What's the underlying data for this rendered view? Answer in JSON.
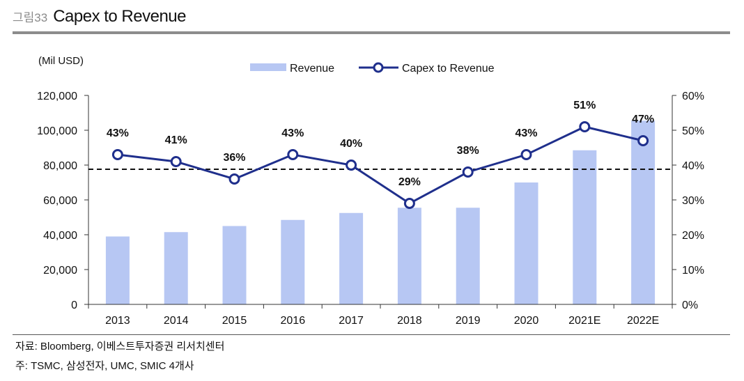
{
  "figure": {
    "number": "그림33",
    "title": "Capex to Revenue"
  },
  "chart_data": {
    "type": "bar",
    "categories": [
      "2013",
      "2014",
      "2015",
      "2016",
      "2017",
      "2018",
      "2019",
      "2020",
      "2021E",
      "2022E"
    ],
    "series": [
      {
        "name": "Revenue",
        "type": "bar",
        "axis": "left",
        "values": [
          39000,
          41500,
          45000,
          48500,
          52500,
          55500,
          55500,
          70000,
          88500,
          105500
        ]
      },
      {
        "name": "Capex to Revenue",
        "type": "line",
        "axis": "right",
        "values": [
          43,
          41,
          36,
          43,
          40,
          29,
          38,
          43,
          51,
          47
        ],
        "labels": [
          "43%",
          "41%",
          "36%",
          "43%",
          "40%",
          "29%",
          "38%",
          "43%",
          "51%",
          "47%"
        ]
      }
    ],
    "y_left": {
      "label": "(Mil USD)",
      "min": 0,
      "max": 120000,
      "ticks": [
        "0",
        "20,000",
        "40,000",
        "60,000",
        "80,000",
        "100,000",
        "120,000"
      ]
    },
    "y_right": {
      "min": 0,
      "max": 60,
      "ticks": [
        "0%",
        "10%",
        "20%",
        "30%",
        "40%",
        "50%",
        "60%"
      ]
    },
    "reference_line": {
      "axis": "right",
      "value": 38.8,
      "style": "dashed"
    },
    "legend_position": "top-center",
    "grid": false,
    "colors": {
      "bar": "#b7c7f3",
      "line": "#1f2f8c",
      "reference": "#111111"
    }
  },
  "footer": {
    "source": "자료: Bloomberg, 이베스트투자증권 리서치센터",
    "note": "주: TSMC, 삼성전자, UMC, SMIC 4개사"
  }
}
